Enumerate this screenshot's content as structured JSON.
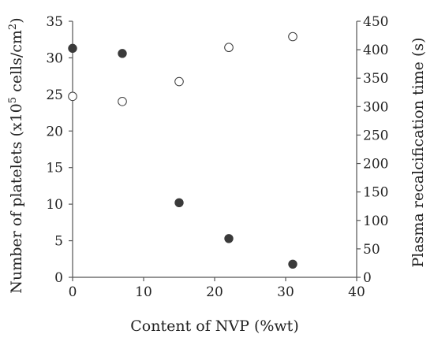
{
  "chart_data": {
    "type": "scatter",
    "title": "",
    "xlabel": "Content of NVP (%wt)",
    "ylabel_left": {
      "main": "Number of platelets (x10",
      "sup": "5",
      "unit": " cells/cm",
      "unit_sup": "2",
      "tail": ")"
    },
    "ylabel_right": "Plasma recalcification time (s)",
    "xlim": [
      0,
      40
    ],
    "ylim_left": [
      0,
      35
    ],
    "ylim_right": [
      0,
      450
    ],
    "x_ticks": [
      0,
      10,
      20,
      30,
      40
    ],
    "y_ticks_left": [
      0,
      5,
      10,
      15,
      20,
      25,
      30,
      35
    ],
    "y_ticks_right": [
      0,
      50,
      100,
      150,
      200,
      250,
      300,
      350,
      400,
      450
    ],
    "grid": false,
    "series": [
      {
        "axis": "left",
        "marker": "filled-circle",
        "color": "#3a3a3a",
        "x": [
          0,
          7,
          15,
          22,
          31
        ],
        "y": [
          31.3,
          30.6,
          10.2,
          5.3,
          1.8
        ]
      },
      {
        "axis": "right",
        "marker": "hollow-circle",
        "color": "#3a3a3a",
        "x": [
          0,
          7,
          15,
          22,
          31
        ],
        "y": [
          318,
          309,
          344,
          404,
          423
        ]
      }
    ]
  }
}
